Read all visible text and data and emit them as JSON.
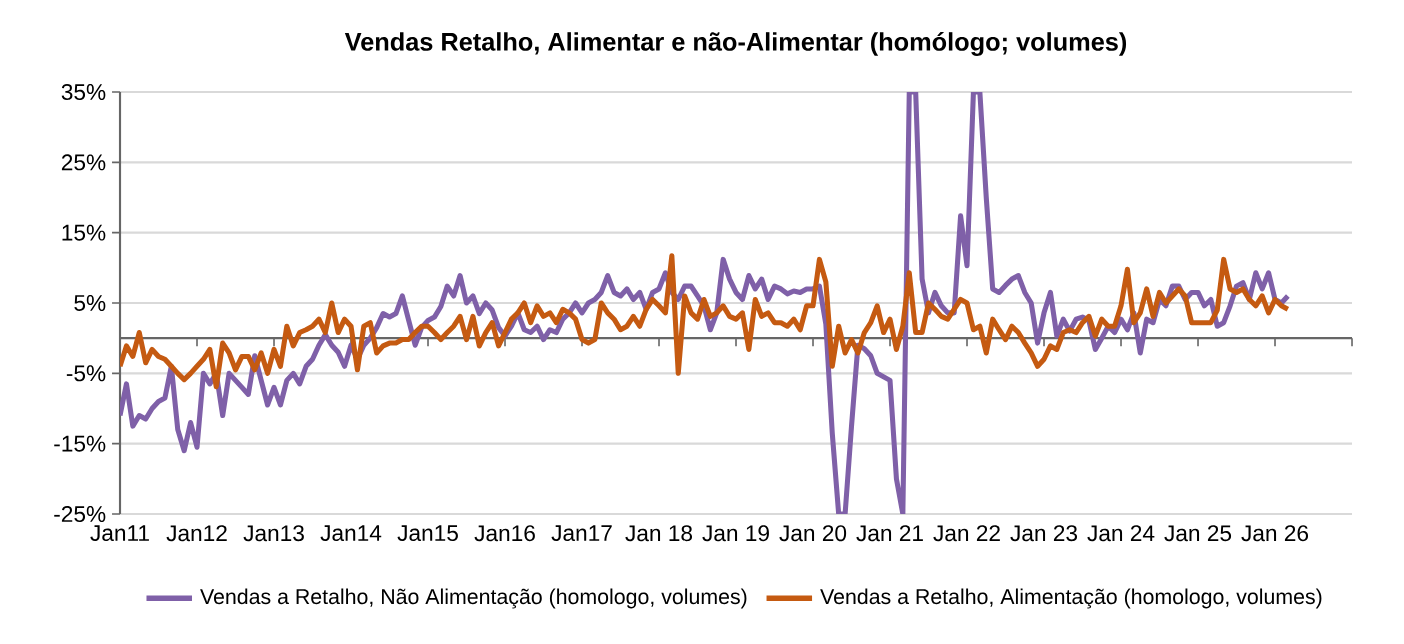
{
  "chart_data": {
    "type": "line",
    "title": "Vendas Retalho, Alimentar e não-Alimentar (homólogo; volumes)",
    "x": [
      "2011-01",
      "2011-02",
      "2011-03",
      "2011-04",
      "2011-05",
      "2011-06",
      "2011-07",
      "2011-08",
      "2011-09",
      "2011-10",
      "2011-11",
      "2011-12",
      "2012-01",
      "2012-02",
      "2012-03",
      "2012-04",
      "2012-05",
      "2012-06",
      "2012-07",
      "2012-08",
      "2012-09",
      "2012-10",
      "2012-11",
      "2012-12",
      "2013-01",
      "2013-02",
      "2013-03",
      "2013-04",
      "2013-05",
      "2013-06",
      "2013-07",
      "2013-08",
      "2013-09",
      "2013-10",
      "2013-11",
      "2013-12",
      "2014-01",
      "2014-02",
      "2014-03",
      "2014-04",
      "2014-05",
      "2014-06",
      "2014-07",
      "2014-08",
      "2014-09",
      "2014-10",
      "2014-11",
      "2014-12",
      "2015-01",
      "2015-02",
      "2015-03",
      "2015-04",
      "2015-05",
      "2015-06",
      "2015-07",
      "2015-08",
      "2015-09",
      "2015-10",
      "2015-11",
      "2015-12",
      "2016-01",
      "2016-02",
      "2016-03",
      "2016-04",
      "2016-05",
      "2016-06",
      "2016-07",
      "2016-08",
      "2016-09",
      "2016-10",
      "2016-11",
      "2016-12",
      "2017-01",
      "2017-02",
      "2017-03",
      "2017-04",
      "2017-05",
      "2017-06",
      "2017-07",
      "2017-08",
      "2017-09",
      "2017-10",
      "2017-11",
      "2017-12",
      "2018-01",
      "2018-02",
      "2018-03",
      "2018-04",
      "2018-05",
      "2018-06",
      "2018-07",
      "2018-08",
      "2018-09",
      "2018-10",
      "2018-11",
      "2018-12",
      "2019-01",
      "2019-02",
      "2019-03",
      "2019-04",
      "2019-05",
      "2019-06",
      "2019-07",
      "2019-08",
      "2019-09",
      "2019-10",
      "2019-11",
      "2019-12",
      "2020-01",
      "2020-02",
      "2020-03",
      "2020-04",
      "2020-05",
      "2020-06",
      "2020-07",
      "2020-08",
      "2020-09",
      "2020-10",
      "2020-11",
      "2020-12",
      "2021-01",
      "2021-02",
      "2021-03",
      "2021-04",
      "2021-05",
      "2021-06",
      "2021-07",
      "2021-08",
      "2021-09",
      "2021-10",
      "2021-11",
      "2021-12",
      "2022-01",
      "2022-02",
      "2022-03",
      "2022-04",
      "2022-05",
      "2022-06",
      "2022-07",
      "2022-08",
      "2022-09",
      "2022-10",
      "2022-11",
      "2022-12",
      "2023-01",
      "2023-02",
      "2023-03",
      "2023-04",
      "2023-05",
      "2023-06",
      "2023-07",
      "2023-08",
      "2023-09",
      "2023-10",
      "2023-11",
      "2023-12",
      "2024-01",
      "2024-02",
      "2024-03",
      "2024-04",
      "2024-05",
      "2024-06",
      "2024-07",
      "2024-08",
      "2024-09",
      "2024-10",
      "2024-11",
      "2024-12",
      "2025-01",
      "2025-02",
      "2025-03",
      "2025-04",
      "2025-05",
      "2025-06",
      "2025-07",
      "2025-08",
      "2025-09",
      "2025-10",
      "2025-11",
      "2025-12",
      "2026-01",
      "2026-02",
      "2026-03"
    ],
    "series": [
      {
        "name": "Vendas a Retalho, Não Alimentação (homologo, volumes)",
        "color": "#7f60a8",
        "values": [
          -11,
          -6.5,
          -12.5,
          -11,
          -11.5,
          -10,
          -9,
          -8.5,
          -4,
          -13,
          -16,
          -12,
          -15.5,
          -5,
          -6.5,
          -5,
          -11,
          -5,
          -6,
          -7,
          -8,
          -2.5,
          -6,
          -9.5,
          -7,
          -9.5,
          -6,
          -5,
          -6.5,
          -4,
          -3,
          -1,
          0.5,
          -1,
          -2,
          -4,
          -1,
          -3,
          -1,
          0,
          1.5,
          3.5,
          3,
          3.5,
          6,
          2.5,
          -1,
          1.5,
          2.5,
          3,
          4.5,
          7.4,
          6,
          8.9,
          5,
          6,
          3.5,
          5,
          4,
          1.5,
          0.3,
          1.7,
          3.6,
          1.2,
          0.8,
          1.7,
          -0.2,
          1.2,
          0.8,
          2.7,
          3.6,
          5,
          3.6,
          5,
          5.5,
          6.5,
          8.9,
          6.5,
          6,
          7,
          5.5,
          6.5,
          4.1,
          6.5,
          7,
          9.3,
          6.5,
          5.5,
          7.4,
          7.4,
          6,
          4.6,
          1.2,
          3.6,
          11.2,
          8.4,
          6.5,
          5.5,
          8.9,
          7,
          8.4,
          5.5,
          7.4,
          7,
          6.3,
          6.7,
          6.5,
          7,
          7,
          7.4,
          2,
          -13.5,
          -25,
          -25,
          -12.5,
          -1,
          -1.5,
          -2.5,
          -5,
          -5.5,
          -6,
          -20,
          -25,
          35,
          35,
          8.4,
          3.6,
          6.5,
          4.6,
          3.6,
          3.6,
          17.4,
          10.3,
          35,
          35,
          20,
          7,
          6.5,
          7.5,
          8.4,
          8.9,
          6.5,
          5,
          -0.7,
          3.6,
          6.5,
          0.3,
          2.7,
          1,
          2.7,
          3,
          2.5,
          -1.6,
          0,
          1.7,
          0.8,
          2.7,
          1.2,
          3.6,
          -2.1,
          2.7,
          2.2,
          5.5,
          4.6,
          7.4,
          7.4,
          5.5,
          6.5,
          6.5,
          4.6,
          5.5,
          1.7,
          2.2,
          4.6,
          7.4,
          7.9,
          5.5,
          9.3,
          7,
          9.3,
          5.5,
          5,
          6
        ]
      },
      {
        "name": "Vendas a Retalho, Alimentação (homologo, volumes)",
        "color": "#c55a11",
        "values": [
          -4,
          -1.1,
          -2.6,
          0.8,
          -3.5,
          -1.6,
          -2.6,
          -3,
          -4,
          -5,
          -5.9,
          -5,
          -4,
          -3,
          -1.6,
          -6.9,
          -0.7,
          -2.1,
          -4.5,
          -2.6,
          -2.6,
          -4.5,
          -2.1,
          -5,
          -1.6,
          -4,
          1.7,
          -1.1,
          0.8,
          1.2,
          1.7,
          2.7,
          0.8,
          5,
          0.8,
          2.7,
          1.7,
          -4.5,
          1.7,
          2.2,
          -2.1,
          -1.1,
          -0.7,
          -0.7,
          -0.2,
          -0.2,
          0.8,
          1.7,
          1.7,
          0.8,
          -0.2,
          0.8,
          1.7,
          3.1,
          -0.2,
          3.1,
          -1.1,
          0.8,
          2.2,
          -1.1,
          0.8,
          2.7,
          3.6,
          5,
          2.2,
          4.6,
          3.1,
          3.6,
          2.2,
          4.1,
          3.6,
          2.7,
          -0.2,
          -0.7,
          -0.2,
          5,
          3.6,
          2.7,
          1.2,
          1.7,
          3.1,
          1.7,
          4.1,
          5.5,
          4.6,
          3.6,
          11.7,
          -5,
          6,
          3.6,
          2.7,
          5.5,
          3.1,
          3.6,
          4.6,
          3.1,
          2.7,
          3.6,
          -1.6,
          5.5,
          3.1,
          3.6,
          2.2,
          2.2,
          1.7,
          2.7,
          1.2,
          4.6,
          4.6,
          11.2,
          8,
          -4,
          1.7,
          -2.1,
          -0.2,
          -2.1,
          0.8,
          2.2,
          4.6,
          0.8,
          2.7,
          -1.6,
          1.7,
          9.3,
          0.8,
          0.8,
          5,
          4.1,
          3.1,
          2.7,
          4.1,
          5.5,
          5,
          1.2,
          1.7,
          -2.1,
          2.7,
          1.2,
          -0.2,
          1.7,
          0.8,
          -0.7,
          -2.1,
          -4,
          -3,
          -1.1,
          -1.6,
          0.8,
          1.2,
          0.8,
          2.2,
          3.1,
          0.3,
          2.7,
          1.7,
          1.7,
          4.6,
          9.8,
          2.2,
          3.6,
          7,
          3.1,
          6.5,
          5,
          6,
          7,
          6,
          2.2,
          2.2,
          2.2,
          2.2,
          4,
          11.2,
          7,
          6.5,
          7,
          5.5,
          4.6,
          6,
          3.6,
          5.5,
          4.6,
          4.1
        ]
      }
    ],
    "xlim": [
      "2011-01",
      "2027-01"
    ],
    "xticks": [
      {
        "value": "2011-01",
        "label": "Jan11"
      },
      {
        "value": "2012-01",
        "label": "Jan12"
      },
      {
        "value": "2013-01",
        "label": "Jan13"
      },
      {
        "value": "2014-01",
        "label": "Jan14"
      },
      {
        "value": "2015-01",
        "label": "Jan15"
      },
      {
        "value": "2016-01",
        "label": "Jan16"
      },
      {
        "value": "2017-01",
        "label": "Jan17"
      },
      {
        "value": "2018-01",
        "label": "Jan 18"
      },
      {
        "value": "2019-01",
        "label": "Jan 19"
      },
      {
        "value": "2020-01",
        "label": "Jan 20"
      },
      {
        "value": "2021-01",
        "label": "Jan 21"
      },
      {
        "value": "2022-01",
        "label": "Jan 22"
      },
      {
        "value": "2023-01",
        "label": "Jan 23"
      },
      {
        "value": "2024-01",
        "label": "Jan 24"
      },
      {
        "value": "2025-01",
        "label": "Jan 25"
      },
      {
        "value": "2026-01",
        "label": "Jan 26"
      },
      {
        "value": "2027-01",
        "label": null
      }
    ],
    "ylim": [
      -25,
      35
    ],
    "yticks": [
      {
        "value": -25,
        "label": "-25%"
      },
      {
        "value": -15,
        "label": "-15%"
      },
      {
        "value": -5,
        "label": "-5%"
      },
      {
        "value": 5,
        "label": "5%"
      },
      {
        "value": 15,
        "label": "15%"
      },
      {
        "value": 25,
        "label": "25%"
      },
      {
        "value": 35,
        "label": "35%"
      }
    ],
    "grid": "y",
    "legend": "bottom",
    "marker": "none"
  }
}
